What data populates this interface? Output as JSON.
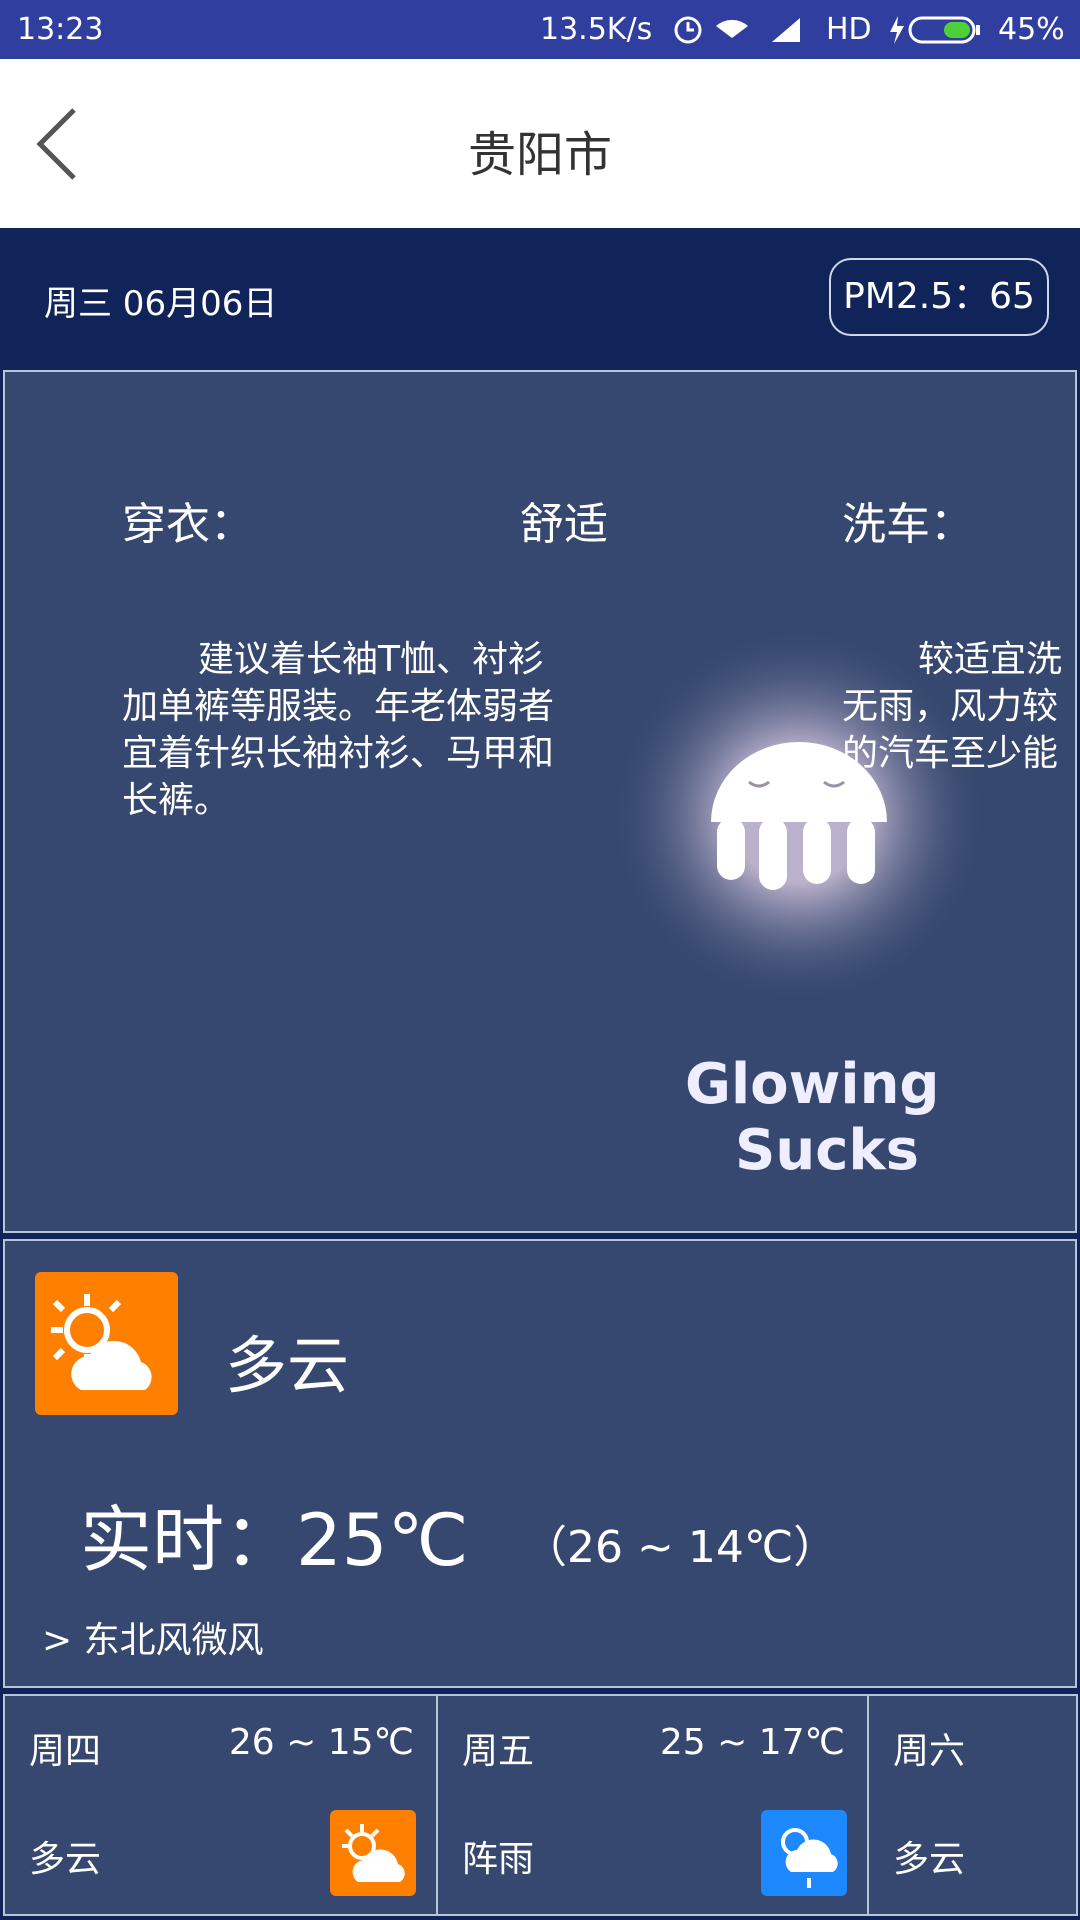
{
  "status_bar": {
    "time": "13:23",
    "speed": "13.5K/s",
    "network": "HD",
    "battery": "45%"
  },
  "header": {
    "title": "贵阳市"
  },
  "info_bar": {
    "date": "周三 06月06日",
    "pm25": "PM2.5：65"
  },
  "index_card": {
    "clothing": {
      "label": "穿衣：",
      "level": "舒适",
      "lines": [
        "建议着长袖T恤、衬衫",
        "加单裤等服装。年老体弱者",
        "宜着针织长袖衬衫、马甲和",
        "长裤。"
      ]
    },
    "car_wash": {
      "label": "洗车：",
      "lines": [
        "较适宜洗",
        "无雨，风力较",
        "的汽车至少能"
      ]
    },
    "image_text": [
      "Glowing",
      "Sucks"
    ]
  },
  "current": {
    "condition": "多云",
    "realtime": "实时：25℃",
    "range": "（26 ~ 14℃）",
    "wind": "> 东北风微风"
  },
  "forecast": [
    {
      "day": "周四",
      "range": "26 ~ 15℃",
      "condition": "多云"
    },
    {
      "day": "周五",
      "range": "25 ~ 17℃",
      "condition": "阵雨"
    },
    {
      "day": "周六",
      "condition": "多云"
    }
  ]
}
